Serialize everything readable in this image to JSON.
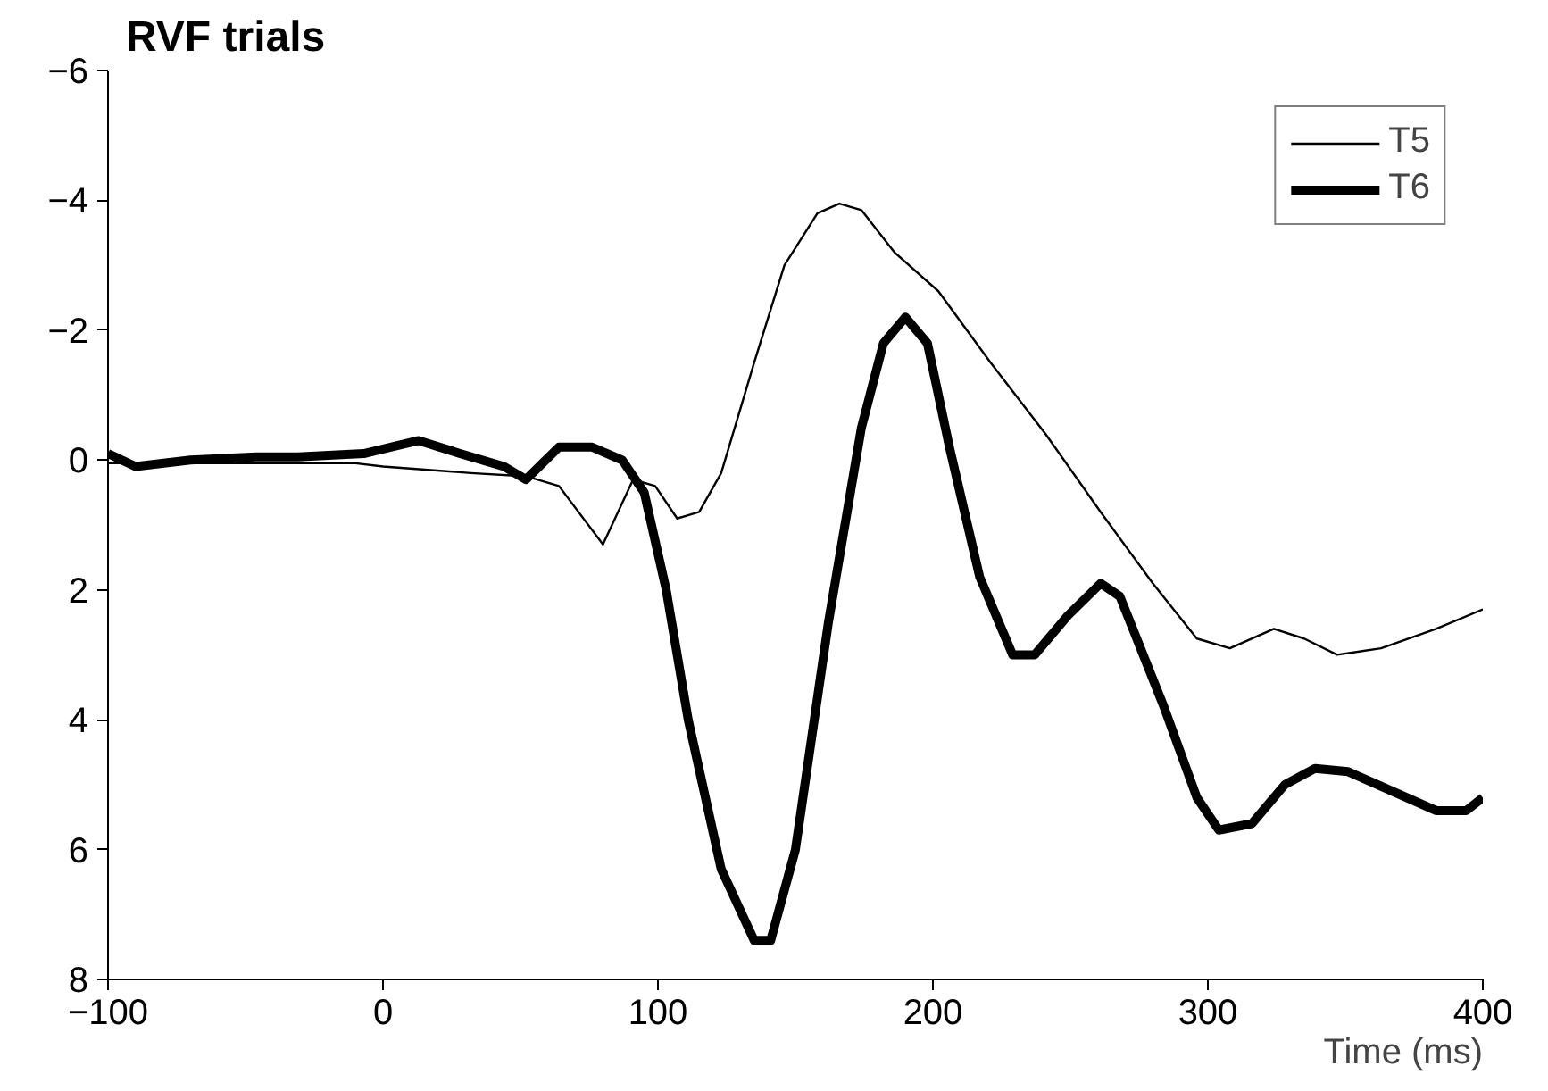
{
  "chart_data": {
    "type": "line",
    "title": "RVF trials",
    "xlabel": "Time (ms)",
    "xlim": [
      -100,
      400
    ],
    "xticks": [
      -100,
      0,
      100,
      200,
      300,
      400
    ],
    "ylim": [
      8,
      -6
    ],
    "yticks": [
      -6,
      -4,
      -2,
      0,
      2,
      4,
      6,
      8
    ],
    "grid": false,
    "legend": "top right",
    "marker": "none",
    "line_style": "solid",
    "series": [
      {
        "name": "T5",
        "color": "#000000",
        "x": [
          -100,
          -70,
          -40,
          -10,
          0,
          32,
          52,
          64,
          80,
          91,
          99,
          107,
          115,
          123,
          135,
          146,
          158,
          166,
          174,
          186,
          202,
          221,
          241,
          261,
          280,
          296,
          308,
          324,
          335,
          347,
          363,
          383,
          400
        ],
        "values": [
          0.05,
          0.05,
          0.05,
          0.05,
          0.1,
          0.2,
          0.25,
          0.4,
          1.3,
          0.3,
          0.4,
          0.9,
          0.8,
          0.2,
          -1.5,
          -3.0,
          -3.8,
          -3.95,
          -3.85,
          -3.2,
          -2.6,
          -1.5,
          -0.4,
          0.8,
          1.9,
          2.75,
          2.9,
          2.6,
          2.75,
          3.0,
          2.9,
          2.6,
          2.3
        ]
      },
      {
        "name": "T6",
        "color": "#000000",
        "x": [
          -100,
          -90,
          -70,
          -46,
          -31,
          -7,
          13,
          28,
          44,
          52,
          64,
          76,
          87,
          95,
          103,
          111,
          123,
          135,
          141,
          150,
          162,
          174,
          182,
          190,
          198,
          206,
          217,
          229,
          237,
          249,
          261,
          268,
          284,
          296,
          304,
          316,
          328,
          339,
          351,
          367,
          383,
          394,
          400
        ],
        "values": [
          -0.1,
          0.1,
          0.0,
          -0.05,
          -0.05,
          -0.1,
          -0.3,
          -0.1,
          0.1,
          0.3,
          -0.2,
          -0.2,
          0.0,
          0.5,
          2.0,
          4.0,
          6.3,
          7.4,
          7.4,
          6.0,
          2.5,
          -0.5,
          -1.8,
          -2.2,
          -1.8,
          -0.2,
          1.8,
          3.0,
          3.0,
          2.4,
          1.9,
          2.1,
          3.8,
          5.2,
          5.7,
          5.6,
          5.0,
          4.75,
          4.8,
          5.1,
          5.4,
          5.4,
          5.2
        ]
      }
    ]
  }
}
